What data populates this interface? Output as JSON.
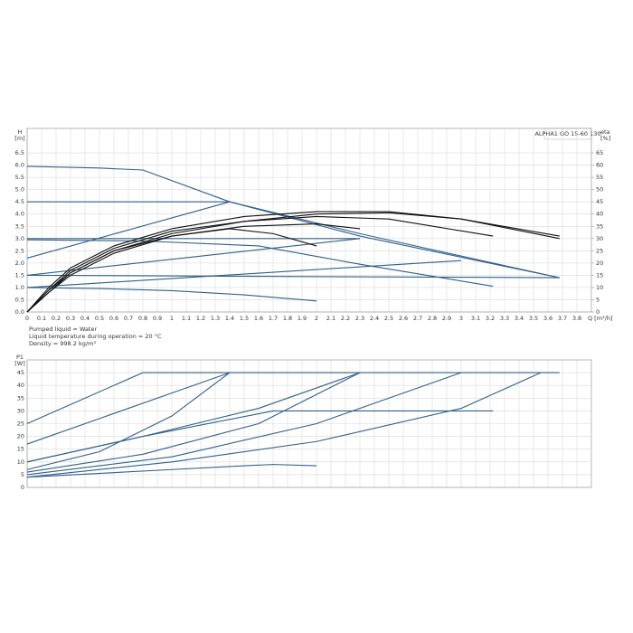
{
  "chart_data": [
    {
      "type": "line",
      "model": "ALPHA1 GO 15-60 130",
      "ylabel": [
        "H",
        "[m]"
      ],
      "y2label": [
        "eta",
        "[%]"
      ],
      "xlabel": "Q [m³/h]",
      "xlim": [
        0,
        3.9
      ],
      "xticks": [
        0,
        0.1,
        0.2,
        0.3,
        0.4,
        0.5,
        0.6,
        0.7,
        0.8,
        0.9,
        1,
        1.1,
        1.2,
        1.3,
        1.4,
        1.5,
        1.6,
        1.7,
        1.8,
        1.9,
        2,
        2.1,
        2.2,
        2.3,
        2.4,
        2.5,
        2.6,
        2.7,
        2.8,
        2.9,
        3,
        3.1,
        3.2,
        3.3,
        3.4,
        3.5,
        3.6,
        3.7,
        3.8
      ],
      "ylim": [
        0,
        7.5
      ],
      "yticks": [
        {
          "value": 0,
          "label": "0.0"
        },
        0.5,
        {
          "value": 1,
          "label": "1.0"
        },
        1.5,
        {
          "value": 2,
          "label": "2.0"
        },
        2.5,
        {
          "value": 3,
          "label": "3.0"
        },
        3.5,
        {
          "value": 4,
          "label": "4.0"
        },
        4.5,
        {
          "value": 5,
          "label": "5.0"
        },
        5.5,
        {
          "value": 6,
          "label": "6.0"
        },
        6.5
      ],
      "y2lim": [
        0,
        75
      ],
      "y2ticks": [
        0,
        5,
        10,
        15,
        20,
        25,
        30,
        35,
        40,
        45,
        50,
        55,
        60,
        65
      ],
      "grid": true,
      "series": [
        {
          "color": "#2f5f8a",
          "x": [
            0,
            0.5,
            0.8,
            1.4,
            2.3,
            3.68
          ],
          "values": [
            5.95,
            5.88,
            5.8,
            4.5,
            3.1,
            1.4
          ]
        },
        {
          "color": "#2f5f8a",
          "x": [
            0,
            1.4,
            2.3,
            3.68
          ],
          "values": [
            4.5,
            4.5,
            3.2,
            1.4
          ]
        },
        {
          "color": "#2f5f8a",
          "x": [
            0,
            1.4
          ],
          "values": [
            2.2,
            4.5
          ]
        },
        {
          "color": "#2f5f8a",
          "x": [
            0,
            2.3
          ],
          "values": [
            3.0,
            3.0
          ]
        },
        {
          "color": "#2f5f8a",
          "x": [
            0,
            0.8,
            1.6,
            2.3,
            3.22
          ],
          "values": [
            2.95,
            2.9,
            2.7,
            1.95,
            1.05
          ]
        },
        {
          "color": "#2f5f8a",
          "x": [
            0,
            2.3
          ],
          "values": [
            1.5,
            3.0
          ]
        },
        {
          "color": "#2f5f8a",
          "x": [
            0,
            3.68
          ],
          "values": [
            1.5,
            1.4
          ]
        },
        {
          "color": "#2f5f8a",
          "x": [
            0,
            3.0
          ],
          "values": [
            1.0,
            2.1
          ]
        },
        {
          "color": "#2f5f8a",
          "x": [
            0,
            0.5,
            1,
            1.5,
            2.0
          ],
          "values": [
            1.0,
            0.96,
            0.87,
            0.7,
            0.45
          ]
        },
        {
          "color": "#111111",
          "axis": "y2",
          "x": [
            0,
            0.15,
            0.3,
            0.6,
            1,
            1.5,
            2,
            2.5,
            3,
            3.68
          ],
          "values": [
            0,
            10,
            18,
            27,
            34,
            39,
            41,
            41,
            38,
            30
          ]
        },
        {
          "color": "#111111",
          "axis": "y2",
          "x": [
            0,
            0.15,
            0.3,
            0.6,
            1,
            1.5,
            2,
            2.5,
            3,
            3.68
          ],
          "values": [
            0,
            9,
            16,
            25,
            32,
            37,
            40,
            40.5,
            38,
            31
          ]
        },
        {
          "color": "#111111",
          "axis": "y2",
          "x": [
            0,
            0.15,
            0.3,
            0.6,
            1,
            1.5,
            2,
            2.5,
            3.22
          ],
          "values": [
            0,
            9,
            17,
            26,
            33,
            37,
            39,
            38,
            31
          ]
        },
        {
          "color": "#111111",
          "axis": "y2",
          "x": [
            0,
            0.15,
            0.3,
            0.6,
            1,
            1.5,
            2,
            2.3
          ],
          "values": [
            0,
            8,
            16,
            25,
            31,
            35,
            36,
            34
          ]
        },
        {
          "color": "#111111",
          "axis": "y2",
          "x": [
            0,
            0.15,
            0.3,
            0.6,
            1,
            1.4,
            1.7,
            2.0
          ],
          "values": [
            0,
            8,
            15,
            24,
            31,
            34,
            32,
            27
          ]
        }
      ]
    },
    {
      "type": "line",
      "notes": [
        "Pumped liquid = Water",
        "Liquid temperature during operation = 20 °C",
        "Density = 998.2 kg/m³"
      ],
      "ylabel": [
        "P1",
        "[W]"
      ],
      "xlim": [
        0,
        3.9
      ],
      "xticks": [
        0,
        0.1,
        0.2,
        0.3,
        0.4,
        0.5,
        0.6,
        0.7,
        0.8,
        0.9,
        1,
        1.1,
        1.2,
        1.3,
        1.4,
        1.5,
        1.6,
        1.7,
        1.8,
        1.9,
        2,
        2.1,
        2.2,
        2.3,
        2.4,
        2.5,
        2.6,
        2.7,
        2.8,
        2.9,
        3,
        3.1,
        3.2,
        3.3,
        3.4,
        3.5,
        3.6,
        3.7,
        3.8
      ],
      "ylim": [
        0,
        50
      ],
      "yticks": [
        0,
        5,
        10,
        15,
        20,
        25,
        30,
        35,
        40,
        45
      ],
      "grid": true,
      "series": [
        {
          "color": "#2f5f8a",
          "x": [
            0,
            0.8,
            3.68
          ],
          "values": [
            25,
            45,
            45
          ]
        },
        {
          "color": "#2f5f8a",
          "x": [
            0,
            0.5,
            1,
            1.4
          ],
          "values": [
            17,
            27,
            37,
            45
          ]
        },
        {
          "color": "#2f5f8a",
          "x": [
            0,
            0.5,
            1,
            1.4
          ],
          "values": [
            7,
            14,
            28,
            45
          ]
        },
        {
          "color": "#2f5f8a",
          "x": [
            0,
            0.8,
            1.6,
            2.3
          ],
          "values": [
            10,
            20,
            31,
            45
          ]
        },
        {
          "color": "#2f5f8a",
          "x": [
            0,
            0.8,
            1.6,
            2.3
          ],
          "values": [
            6,
            13,
            25,
            45
          ]
        },
        {
          "color": "#2f5f8a",
          "x": [
            0,
            0.8,
            1.7,
            3.22
          ],
          "values": [
            10,
            20,
            30,
            30
          ]
        },
        {
          "color": "#2f5f8a",
          "x": [
            0,
            1,
            2,
            3.0
          ],
          "values": [
            5,
            12,
            25,
            45
          ]
        },
        {
          "color": "#2f5f8a",
          "x": [
            0,
            1,
            2,
            3.0,
            3.55
          ],
          "values": [
            4,
            10,
            18,
            31,
            45
          ]
        },
        {
          "color": "#2f5f8a",
          "x": [
            0,
            1,
            1.5,
            1.7,
            2.0
          ],
          "values": [
            4,
            7,
            8.5,
            9,
            8.5
          ]
        }
      ]
    }
  ]
}
